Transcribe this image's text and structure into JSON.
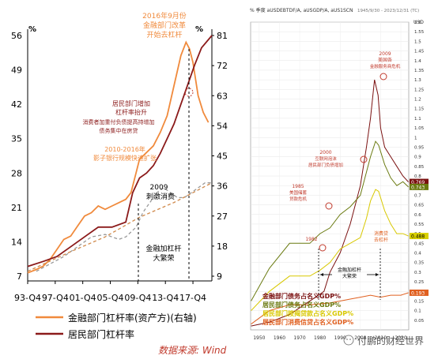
{
  "left_chart": {
    "left_axis_unit": "%",
    "right_axis_unit": "%",
    "left_ticks": [
      "7",
      "14",
      "21",
      "28",
      "35",
      "42",
      "49",
      "56"
    ],
    "right_ticks": [
      "9",
      "18",
      "27",
      "36",
      "45",
      "54",
      "63",
      "72",
      "81"
    ],
    "x_ticks": [
      "93-Q4",
      "97-Q4",
      "01-Q4",
      "05-Q4",
      "09-Q4",
      "13-Q4",
      "17-Q4"
    ],
    "annotations": {
      "a2016_line1": "2016年9月份",
      "a2016_line2": "金融部门改革",
      "a2016_line3": "开始去杠杆",
      "household_line1": "居民部门增加",
      "household_line2": "杠杆率抬升",
      "household_line3": "消费者加重付负债提高持增加",
      "household_line4": "债务集中在房贷",
      "shadow_line1": "2010-2016年",
      "shadow_line2": "影子银行规模快速扩张",
      "y2009_line1": "2009",
      "y2009_line2": "刺激消费",
      "fin_line1": "金融加杠杆",
      "fin_line2": "大繁荣"
    },
    "legend": [
      {
        "name": "金融部门杠杆率(资产方)(右轴)",
        "color": "#f08a3c"
      },
      {
        "name": "居民部门杠杆率",
        "color": "#8b1a1a"
      }
    ],
    "source": "数据来源: Wind"
  },
  "right_chart": {
    "header": "% 季度 aUSDEBTDF/A, aUSGDP/A, aUS1SCN",
    "header_dates": "1945/9/30 - 2023/12/31 (TC)",
    "right_unit": "USD",
    "right_ticks": [
      "1.6",
      "1.55",
      "1.5",
      "1.45",
      "1.4",
      "1.35",
      "1.3",
      "1.25",
      "1.2",
      "1.15",
      "1.1",
      "1.05",
      "1",
      "0.95",
      "0.9",
      "0.85",
      "0.8",
      "0.75",
      "0.7",
      "0.65",
      "0.6",
      "0.55",
      "0.5",
      "0.45",
      "0.4",
      "0.35",
      "0.3",
      "0.25",
      "0.2",
      "0.15",
      "0.1",
      "0.05"
    ],
    "x_ticks": [
      "1950",
      "1960",
      "1970",
      "1980",
      "1990",
      "2000",
      "2010",
      "2020"
    ],
    "value_tags": [
      {
        "label": "0.769",
        "color": "#7a1010"
      },
      {
        "label": "0.743",
        "color": "#6a7a10"
      },
      {
        "label": "0.488",
        "color": "#d8d000"
      },
      {
        "label": "0.193",
        "color": "#e06020"
      }
    ],
    "annotations": {
      "a2009_1": "2009",
      "a2009_2": "美国各",
      "a2009_3": "金融服务商危机",
      "a2000_1": "2000",
      "a2000_2": "互联网泡沫",
      "a2000_3": "居民部门负债增加",
      "a1985_1": "1985",
      "a1985_2": "美国储蓄",
      "a1985_3": "贷款危机",
      "a1982": "1982",
      "fin_1": "金融加杠杆",
      "fin_2": "大繁荣",
      "deleverage_1": "消费贷",
      "deleverage_2": "去杠杆"
    },
    "legend": [
      {
        "name": "金融部门债务占名义GDP%",
        "color": "#7a1010"
      },
      {
        "name": "居民部门债务占名义GDP%",
        "color": "#6a7a10"
      },
      {
        "name": "居民部门按揭贷款占名义GDP%",
        "color": "#d8c800"
      },
      {
        "name": "居民部门消费信贷占名义GDP%",
        "color": "#e06020"
      }
    ],
    "watermark": "付鹏的财经世界"
  },
  "chart_data": [
    {
      "type": "line",
      "title": "",
      "xlabel": "",
      "ylabel": "%",
      "x_range": [
        1993.75,
        2020.5
      ],
      "ylim_left": [
        7,
        56
      ],
      "ylim_right": [
        9,
        81
      ],
      "series": [
        {
          "name": "金融部门杠杆率(资产方)(右轴)",
          "axis": "right",
          "color": "#f08a3c",
          "x": [
            1993.75,
            1995,
            1996,
            1997,
            1998,
            1999,
            2000,
            2001,
            2002,
            2003,
            2004,
            2005,
            2006,
            2007,
            2008,
            2008.75,
            2009.5,
            2010,
            2011,
            2012,
            2013,
            2014,
            2015,
            2016,
            2016.75,
            2017.25,
            2017.75,
            2018.5,
            2019.25,
            2020
          ],
          "values": [
            10,
            11,
            12,
            14,
            17,
            20,
            21,
            24,
            27,
            28,
            30,
            29,
            30,
            31,
            32,
            34,
            40,
            44,
            46,
            48,
            52,
            57,
            66,
            75,
            79,
            77,
            73,
            63,
            58,
            55
          ]
        },
        {
          "name": "居民部门杠杆率",
          "axis": "left",
          "color": "#8b1a1a",
          "x": [
            1993.75,
            1996,
            1998,
            2000,
            2002,
            2004,
            2006,
            2008,
            2009,
            2010,
            2011,
            2012,
            2013,
            2014,
            2015,
            2016,
            2017,
            2018,
            2019,
            2020.5
          ],
          "values": [
            9,
            10,
            11,
            13,
            15,
            17,
            17,
            18,
            24,
            27,
            28,
            29.5,
            32,
            35,
            38,
            42,
            46,
            50,
            53.5,
            56
          ]
        },
        {
          "name": "",
          "axis": "left",
          "color": "#999999",
          "style": "dashed",
          "x": [
            1995,
            1997,
            1999,
            2001,
            2003,
            2005,
            2007,
            2008,
            2009.5,
            2010.5,
            2011.5,
            2012.5,
            2013.5,
            2014.5,
            2015.5,
            2016.5,
            2017.5,
            2018.5,
            2019.5,
            2020.5
          ],
          "values": [
            8,
            9.5,
            11,
            13,
            15,
            15.5,
            14.5,
            15,
            17,
            20,
            22,
            24,
            25,
            24,
            23,
            23,
            24,
            25,
            26,
            26
          ]
        },
        {
          "name": "",
          "axis": "left",
          "color": "#d0894a",
          "style": "dashed",
          "x": [
            1993.75,
            2000,
            2005,
            2010,
            2015,
            2020.5
          ],
          "values": [
            8,
            12,
            15,
            19,
            22,
            26
          ]
        }
      ]
    },
    {
      "type": "line",
      "title": "",
      "xlabel": "",
      "ylabel": "USD",
      "x_range": [
        1945.75,
        2023.9
      ],
      "ylim": [
        0,
        1.6
      ],
      "series": [
        {
          "name": "金融部门债务占名义GDP%",
          "color": "#7a1010",
          "x": [
            1946,
            1955,
            1965,
            1975,
            1982,
            1985,
            1990,
            1995,
            2000,
            2003,
            2005,
            2007,
            2008.75,
            2010,
            2012,
            2015,
            2018,
            2021,
            2023.75
          ],
          "values": [
            0.02,
            0.04,
            0.08,
            0.15,
            0.2,
            0.3,
            0.4,
            0.55,
            0.75,
            0.95,
            1.1,
            1.3,
            1.22,
            1.05,
            0.95,
            0.9,
            0.85,
            0.8,
            0.769
          ]
        },
        {
          "name": "居民部门债务占名义GDP%",
          "color": "#6a7a10",
          "x": [
            1946,
            1955,
            1965,
            1975,
            1980,
            1985,
            1990,
            1995,
            2000,
            2003,
            2005,
            2007.5,
            2009,
            2012,
            2015,
            2018,
            2021,
            2023.75
          ],
          "values": [
            0.15,
            0.32,
            0.45,
            0.45,
            0.5,
            0.53,
            0.6,
            0.64,
            0.7,
            0.82,
            0.9,
            0.98,
            0.96,
            0.86,
            0.79,
            0.75,
            0.77,
            0.743
          ]
        },
        {
          "name": "居民部门按揭贷款占名义GDP%",
          "color": "#d8c800",
          "x": [
            1946,
            1955,
            1965,
            1975,
            1980,
            1985,
            1990,
            1995,
            2000,
            2003,
            2005,
            2007.5,
            2009,
            2012,
            2015,
            2018,
            2021,
            2023.75
          ],
          "values": [
            0.1,
            0.2,
            0.28,
            0.28,
            0.31,
            0.35,
            0.42,
            0.45,
            0.48,
            0.58,
            0.67,
            0.73,
            0.72,
            0.62,
            0.55,
            0.5,
            0.5,
            0.488
          ]
        },
        {
          "name": "居民部门消费信贷占名义GDP%",
          "color": "#e06020",
          "x": [
            1946,
            1955,
            1965,
            1975,
            1985,
            1995,
            2000,
            2005,
            2010,
            2015,
            2020,
            2023.75
          ],
          "values": [
            0.03,
            0.1,
            0.13,
            0.13,
            0.14,
            0.16,
            0.17,
            0.18,
            0.17,
            0.18,
            0.18,
            0.193
          ]
        }
      ]
    }
  ]
}
